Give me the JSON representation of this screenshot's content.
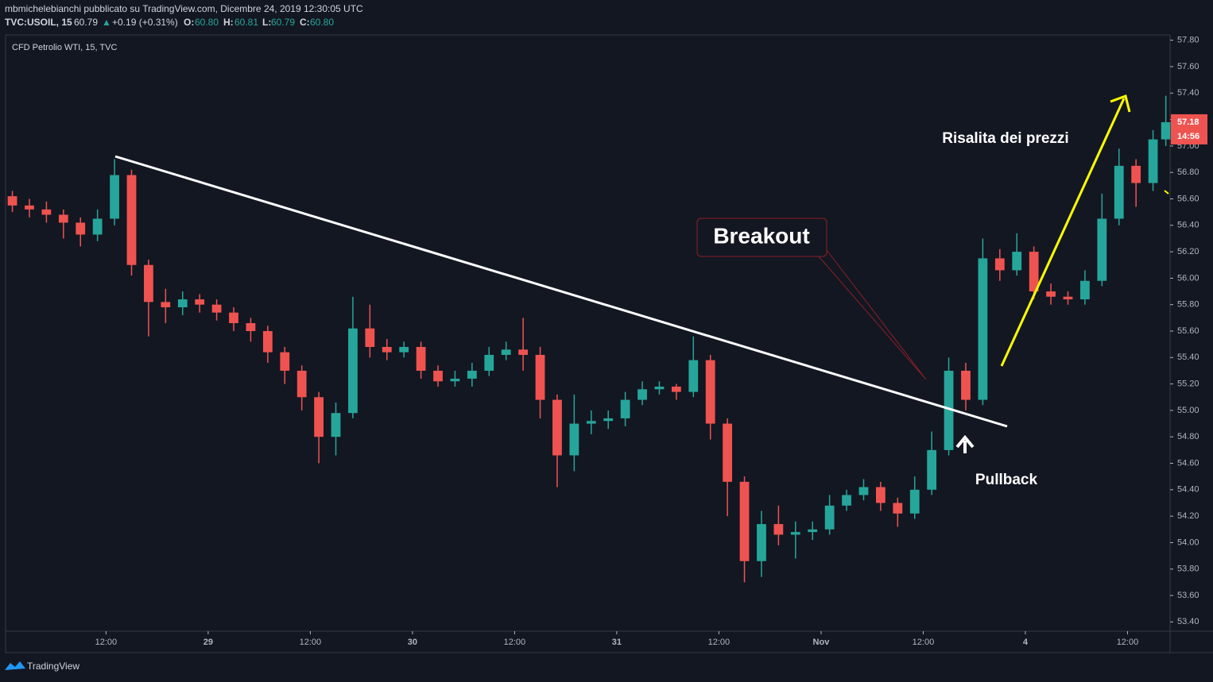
{
  "header": {
    "line1": "mbmichelebianchi pubblicato su TradingView.com, Dicembre 24, 2019 12:30:05 UTC",
    "symbol": "TVC:USOIL, 15",
    "last": "60.79",
    "arrow": "▲",
    "change": "+0.19 (+0.31%)",
    "o_label": "O:",
    "o": "60.80",
    "h_label": "H:",
    "h": "60.81",
    "l_label": "L:",
    "l": "60.79",
    "c_label": "C:",
    "c": "60.80"
  },
  "chart_data": {
    "type": "candlestick",
    "title": "CFD Petrolio WTI, 15, TVC",
    "up_color": "#26a69a",
    "down_color": "#ef5350",
    "x": [
      1,
      3,
      5,
      7,
      9,
      11,
      13,
      15,
      17,
      19,
      21,
      23,
      25,
      27,
      29,
      31,
      33,
      35,
      37,
      39,
      41,
      43,
      45,
      47,
      49,
      51,
      53,
      55,
      57,
      59,
      61,
      63,
      65,
      67,
      69,
      71,
      73,
      75,
      77,
      79,
      81,
      83,
      85,
      87,
      89,
      91,
      93,
      95,
      97,
      99,
      101,
      103,
      105,
      107,
      109,
      111,
      113,
      115,
      117,
      119,
      121,
      123,
      125,
      127,
      129,
      131,
      133,
      135,
      136.5
    ],
    "open": [
      56.62,
      56.55,
      56.52,
      56.48,
      56.42,
      56.33,
      56.45,
      56.78,
      56.1,
      55.82,
      55.78,
      55.84,
      55.8,
      55.74,
      55.66,
      55.6,
      55.44,
      55.3,
      55.1,
      54.8,
      54.98,
      55.62,
      55.48,
      55.44,
      55.48,
      55.3,
      55.22,
      55.24,
      55.3,
      55.42,
      55.46,
      55.42,
      55.08,
      54.66,
      54.9,
      54.92,
      54.94,
      55.08,
      55.16,
      55.18,
      55.14,
      55.38,
      54.9,
      54.46,
      53.86,
      54.14,
      54.06,
      54.08,
      54.1,
      54.28,
      54.36,
      54.42,
      54.3,
      54.22,
      54.4,
      54.7,
      55.3,
      55.08,
      56.15,
      56.06,
      56.2,
      55.9,
      55.86,
      55.84,
      55.98,
      56.45,
      56.85,
      56.72,
      57.05
    ],
    "high": [
      56.66,
      56.6,
      56.58,
      56.52,
      56.46,
      56.52,
      56.9,
      56.82,
      56.14,
      55.92,
      55.9,
      55.88,
      55.84,
      55.78,
      55.7,
      55.64,
      55.48,
      55.34,
      55.14,
      55.06,
      55.86,
      55.8,
      55.54,
      55.52,
      55.52,
      55.34,
      55.3,
      55.36,
      55.48,
      55.52,
      55.7,
      55.48,
      55.12,
      55.12,
      55.0,
      55.0,
      55.14,
      55.22,
      55.22,
      55.2,
      55.56,
      55.42,
      54.94,
      54.5,
      54.24,
      54.28,
      54.16,
      54.16,
      54.36,
      54.4,
      54.48,
      54.46,
      54.34,
      54.5,
      54.84,
      55.4,
      55.36,
      56.3,
      56.22,
      56.34,
      56.24,
      55.96,
      55.9,
      56.06,
      56.64,
      56.98,
      56.9,
      57.12,
      57.38
    ],
    "low": [
      56.5,
      56.46,
      56.42,
      56.3,
      56.24,
      56.28,
      56.4,
      56.02,
      55.56,
      55.66,
      55.72,
      55.74,
      55.68,
      55.6,
      55.52,
      55.36,
      55.2,
      55.0,
      54.6,
      54.66,
      54.94,
      55.4,
      55.38,
      55.4,
      55.24,
      55.18,
      55.18,
      55.18,
      55.26,
      55.38,
      55.3,
      54.94,
      54.42,
      54.54,
      54.82,
      54.86,
      54.88,
      55.04,
      55.12,
      55.08,
      55.1,
      54.78,
      54.2,
      53.7,
      53.74,
      53.98,
      53.88,
      54.02,
      54.06,
      54.24,
      54.32,
      54.24,
      54.12,
      54.18,
      54.36,
      54.66,
      55.0,
      55.04,
      55.98,
      56.02,
      55.84,
      55.8,
      55.8,
      55.8,
      55.94,
      56.4,
      56.54,
      56.66,
      57.0
    ],
    "close": [
      56.55,
      56.52,
      56.48,
      56.42,
      56.33,
      56.45,
      56.78,
      56.1,
      55.82,
      55.78,
      55.84,
      55.8,
      55.74,
      55.66,
      55.6,
      55.44,
      55.3,
      55.1,
      54.8,
      54.98,
      55.62,
      55.48,
      55.44,
      55.48,
      55.3,
      55.22,
      55.24,
      55.3,
      55.42,
      55.46,
      55.42,
      55.08,
      54.66,
      54.9,
      54.92,
      54.94,
      55.08,
      55.16,
      55.18,
      55.14,
      55.38,
      54.9,
      54.46,
      53.86,
      54.14,
      54.06,
      54.08,
      54.1,
      54.28,
      54.36,
      54.42,
      54.3,
      54.22,
      54.4,
      54.7,
      55.3,
      55.08,
      56.15,
      56.06,
      56.2,
      55.9,
      55.86,
      55.84,
      55.98,
      56.45,
      56.85,
      56.72,
      57.05,
      57.18
    ],
    "xlim": [
      0.2,
      137
    ],
    "xticks": [
      {
        "value": 12,
        "label": "12:00"
      },
      {
        "value": 24,
        "label": "29"
      },
      {
        "value": 36,
        "label": "12:00"
      },
      {
        "value": 48,
        "label": "30"
      },
      {
        "value": 60,
        "label": "12:00"
      },
      {
        "value": 72,
        "label": "31"
      },
      {
        "value": 84,
        "label": "12:00"
      },
      {
        "value": 96,
        "label": "Nov"
      },
      {
        "value": 108,
        "label": "12:00"
      },
      {
        "value": 120,
        "label": "4"
      },
      {
        "value": 132,
        "label": "12:00"
      }
    ],
    "ylim": [
      53.33,
      57.84
    ],
    "yticks": [
      {
        "value": 53.4,
        "label": "53.40"
      },
      {
        "value": 53.6,
        "label": "53.60"
      },
      {
        "value": 53.8,
        "label": "53.80"
      },
      {
        "value": 54.0,
        "label": "54.00"
      },
      {
        "value": 54.2,
        "label": "54.20"
      },
      {
        "value": 54.4,
        "label": "54.40"
      },
      {
        "value": 54.6,
        "label": "54.60"
      },
      {
        "value": 54.8,
        "label": "54.80"
      },
      {
        "value": 55.0,
        "label": "55.00"
      },
      {
        "value": 55.2,
        "label": "55.20"
      },
      {
        "value": 55.4,
        "label": "55.40"
      },
      {
        "value": 55.6,
        "label": "55.60"
      },
      {
        "value": 55.8,
        "label": "55.80"
      },
      {
        "value": 56.0,
        "label": "56.00"
      },
      {
        "value": 56.2,
        "label": "56.20"
      },
      {
        "value": 56.4,
        "label": "56.40"
      },
      {
        "value": 56.6,
        "label": "56.60"
      },
      {
        "value": 56.8,
        "label": "56.80"
      },
      {
        "value": 57.0,
        "label": "57.00"
      },
      {
        "value": 57.2,
        "label": "57.20"
      },
      {
        "value": 57.4,
        "label": "57.40"
      },
      {
        "value": 57.6,
        "label": "57.60"
      },
      {
        "value": 57.8,
        "label": "57.80"
      }
    ],
    "last_price": 57.18,
    "countdown": "14:56",
    "annotations": {
      "breakout": "Breakout",
      "pullback": "Pullback",
      "rise": "Risalita dei prezzi"
    }
  },
  "footer": {
    "brand": "TradingView"
  }
}
